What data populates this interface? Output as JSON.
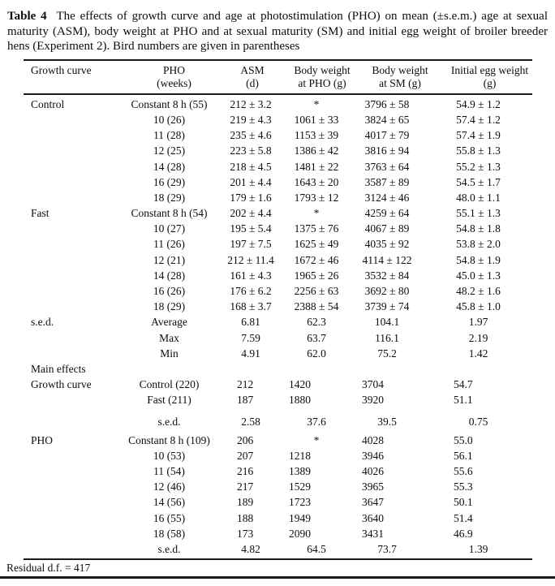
{
  "caption": {
    "label": "Table 4",
    "text": "The effects of growth curve and age at photostimulation (PHO) on mean (±s.e.m.) age at sexual maturity (ASM), body weight at PHO and at sexual maturity (SM) and initial egg weight of broiler breeder hens (Experiment 2). Bird numbers are given in parentheses"
  },
  "table": {
    "columns": [
      {
        "line1": "Growth curve",
        "line2": ""
      },
      {
        "line1": "PHO",
        "line2": "(weeks)"
      },
      {
        "line1": "ASM",
        "line2": "(d)"
      },
      {
        "line1": "Body weight",
        "line2": "at PHO (g)"
      },
      {
        "line1": "Body weight",
        "line2": "at SM (g)"
      },
      {
        "line1": "Initial egg weight",
        "line2": "(g)"
      }
    ],
    "rows": [
      {
        "cells": [
          "Control",
          "Constant 8 h (55)",
          "212 ± 3.2",
          "*",
          "3796 ± 58",
          "54.9 ± 1.2"
        ],
        "align": "center",
        "gap": ""
      },
      {
        "cells": [
          "",
          "10 (26)",
          "219 ± 4.3",
          "1061 ± 33",
          "3824 ± 65",
          "57.4 ± 1.2"
        ],
        "align": "center",
        "gap": ""
      },
      {
        "cells": [
          "",
          "11 (28)",
          "235 ± 4.6",
          "1153 ± 39",
          "4017 ± 79",
          "57.4 ± 1.9"
        ],
        "align": "center",
        "gap": ""
      },
      {
        "cells": [
          "",
          "12 (25)",
          "223 ± 5.8",
          "1386 ± 42",
          "3816 ± 94",
          "55.8 ± 1.3"
        ],
        "align": "center",
        "gap": ""
      },
      {
        "cells": [
          "",
          "14 (28)",
          "218 ± 4.5",
          "1481 ± 22",
          "3763 ± 64",
          "55.2 ± 1.3"
        ],
        "align": "center",
        "gap": ""
      },
      {
        "cells": [
          "",
          "16 (29)",
          "201 ± 4.4",
          "1643 ± 20",
          "3587 ± 89",
          "54.5 ± 1.7"
        ],
        "align": "center",
        "gap": ""
      },
      {
        "cells": [
          "",
          "18 (29)",
          "179 ± 1.6",
          "1793 ± 12",
          "3124 ± 46",
          "48.0 ± 1.1"
        ],
        "align": "center",
        "gap": ""
      },
      {
        "cells": [
          "Fast",
          "Constant 8 h (54)",
          "202 ± 4.4",
          "*",
          "4259 ± 64",
          "55.1 ± 1.3"
        ],
        "align": "center",
        "gap": ""
      },
      {
        "cells": [
          "",
          "10 (27)",
          "195 ± 5.4",
          "1375 ± 76",
          "4067 ± 89",
          "54.8 ± 1.8"
        ],
        "align": "center",
        "gap": ""
      },
      {
        "cells": [
          "",
          "11 (26)",
          "197 ± 7.5",
          "1625 ± 49",
          "4035 ± 92",
          "53.8 ± 2.0"
        ],
        "align": "center",
        "gap": ""
      },
      {
        "cells": [
          "",
          "12 (21)",
          "212 ± 11.4",
          "1672 ± 46",
          "4114 ± 122",
          "54.8 ± 1.9"
        ],
        "align": "center",
        "gap": ""
      },
      {
        "cells": [
          "",
          "14 (28)",
          "161 ± 4.3",
          "1965 ± 26",
          "3532 ± 84",
          "45.0 ± 1.3"
        ],
        "align": "center",
        "gap": ""
      },
      {
        "cells": [
          "",
          "16 (26)",
          "176 ± 6.2",
          "2256 ± 63",
          "3692 ± 80",
          "48.2 ± 1.6"
        ],
        "align": "center",
        "gap": ""
      },
      {
        "cells": [
          "",
          "18 (29)",
          "168 ± 3.7",
          "2388 ± 54",
          "3739 ± 74",
          "45.8 ± 1.0"
        ],
        "align": "center",
        "gap": ""
      },
      {
        "cells": [
          "s.e.d.",
          "Average",
          "6.81",
          "62.3",
          "104.1",
          "1.97"
        ],
        "align": "center",
        "gap": ""
      },
      {
        "cells": [
          "",
          "Max",
          "7.59",
          "63.7",
          "116.1",
          "2.19"
        ],
        "align": "center",
        "gap": ""
      },
      {
        "cells": [
          "",
          "Min",
          "4.91",
          "62.0",
          "75.2",
          "1.42"
        ],
        "align": "center",
        "gap": ""
      },
      {
        "cells": [
          "Main effects",
          "",
          "",
          "",
          "",
          ""
        ],
        "align": "center",
        "gap": ""
      },
      {
        "cells": [
          "Growth curve",
          "Control (220)",
          "212",
          "1420",
          "3704",
          "54.7"
        ],
        "align": "left",
        "gap": ""
      },
      {
        "cells": [
          "",
          "Fast (211)",
          "187",
          "1880",
          "3920",
          "51.1"
        ],
        "align": "left",
        "gap": ""
      },
      {
        "cells": [
          "",
          "s.e.d.",
          "2.58",
          "37.6",
          "39.5",
          "0.75"
        ],
        "align": "center",
        "gap": "big"
      },
      {
        "cells": [
          "PHO",
          "Constant 8 h (109)",
          "206",
          "*",
          "4028",
          "55.0"
        ],
        "align": "left",
        "gap": "sm"
      },
      {
        "cells": [
          "",
          "10 (53)",
          "207",
          "1218",
          "3946",
          "56.1"
        ],
        "align": "left",
        "gap": ""
      },
      {
        "cells": [
          "",
          "11 (54)",
          "216",
          "1389",
          "4026",
          "55.6"
        ],
        "align": "left",
        "gap": ""
      },
      {
        "cells": [
          "",
          "12 (46)",
          "217",
          "1529",
          "3965",
          "55.3"
        ],
        "align": "left",
        "gap": ""
      },
      {
        "cells": [
          "",
          "14 (56)",
          "189",
          "1723",
          "3647",
          "50.1"
        ],
        "align": "left",
        "gap": ""
      },
      {
        "cells": [
          "",
          "16 (55)",
          "188",
          "1949",
          "3640",
          "51.4"
        ],
        "align": "left",
        "gap": ""
      },
      {
        "cells": [
          "",
          "18 (58)",
          "173",
          "2090",
          "3431",
          "46.9"
        ],
        "align": "left",
        "gap": ""
      },
      {
        "cells": [
          "",
          "s.e.d.",
          "4.82",
          "64.5",
          "73.7",
          "1.39"
        ],
        "align": "center",
        "gap": ""
      }
    ]
  },
  "footer": {
    "residual": "Residual d.f. = 417"
  }
}
